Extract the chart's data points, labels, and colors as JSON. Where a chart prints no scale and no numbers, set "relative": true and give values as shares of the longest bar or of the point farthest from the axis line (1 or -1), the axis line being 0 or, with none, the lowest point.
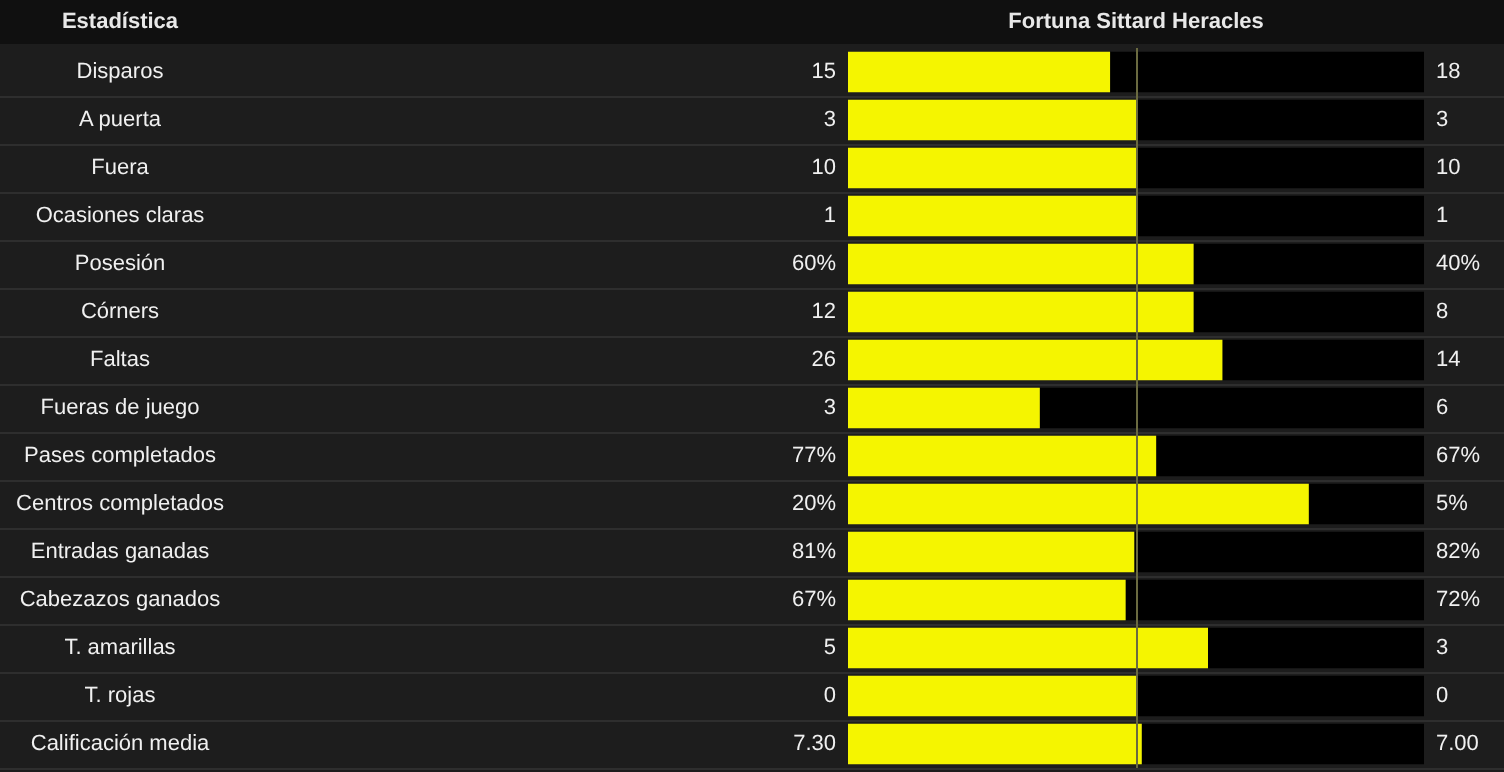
{
  "chart_data": {
    "type": "bar",
    "title": "Fortuna Sittard Heracles",
    "ylabel": "Estadística",
    "orientation": "horizontal",
    "stacked": true,
    "relative": true,
    "categories": [
      "Disparos",
      "A puerta",
      "Fuera",
      "Ocasiones claras",
      "Posesión",
      "Córners",
      "Faltas",
      "Fueras de juego",
      "Pases completados",
      "Centros completados",
      "Entradas ganadas",
      "Cabezazos ganados",
      "T. amarillas",
      "T. rojas",
      "Calificación media"
    ],
    "series": [
      {
        "color": "#f5f500",
        "values": [
          0.455,
          0.5,
          0.5,
          0.5,
          0.6,
          0.6,
          0.65,
          0.333,
          0.535,
          0.8,
          0.497,
          0.482,
          0.625,
          0.5,
          0.51
        ]
      },
      {
        "color": "#000000",
        "values": [
          0.545,
          0.5,
          0.5,
          0.5,
          0.4,
          0.4,
          0.35,
          0.667,
          0.465,
          0.2,
          0.503,
          0.518,
          0.375,
          0.5,
          0.49
        ]
      }
    ],
    "ref_lines": [
      {
        "axis": "x",
        "value": 0.5,
        "color": "#6a6a40"
      }
    ],
    "annotations": [
      "15",
      "18",
      "3",
      "3",
      "10",
      "10",
      "1",
      "1",
      "60%",
      "40%",
      "12",
      "8",
      "26",
      "14",
      "3",
      "6",
      "77%",
      "67%",
      "20%",
      "5%",
      "81%",
      "82%",
      "67%",
      "72%",
      "5",
      "3",
      "0",
      "0",
      "7.30",
      "7.00"
    ]
  }
}
